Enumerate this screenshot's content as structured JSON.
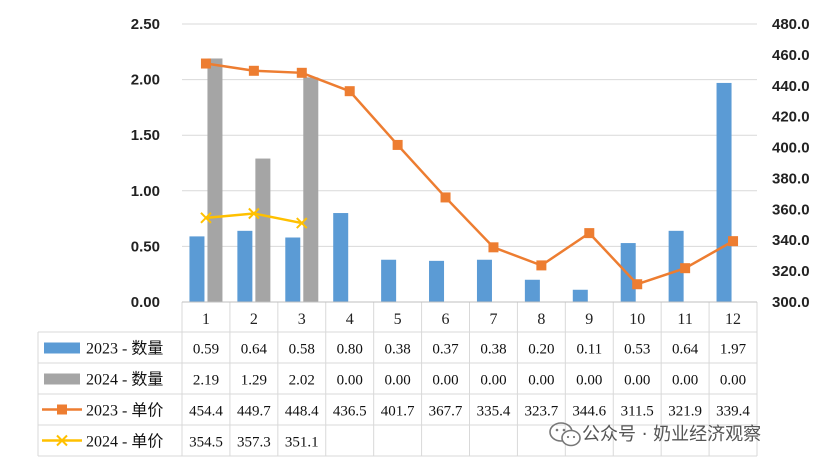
{
  "chart_data": {
    "type": "bar",
    "categories": [
      "1",
      "2",
      "3",
      "4",
      "5",
      "6",
      "7",
      "8",
      "9",
      "10",
      "11",
      "12"
    ],
    "left_axis": {
      "ylim": [
        0,
        2.5
      ],
      "ticks": [
        "0.00",
        "0.50",
        "1.00",
        "1.50",
        "2.00",
        "2.50"
      ],
      "tick_values": [
        0,
        0.5,
        1.0,
        1.5,
        2.0,
        2.5
      ]
    },
    "right_axis": {
      "ylim": [
        300,
        480
      ],
      "ticks": [
        "300.0",
        "320.0",
        "340.0",
        "360.0",
        "380.0",
        "400.0",
        "420.0",
        "440.0",
        "460.0",
        "480.0"
      ],
      "tick_values": [
        300,
        320,
        340,
        360,
        380,
        400,
        420,
        440,
        460,
        480
      ]
    },
    "series": [
      {
        "name": "2023 - 数量",
        "kind": "bar",
        "axis": "left",
        "color": "#5b9bd5",
        "values": [
          0.59,
          0.64,
          0.58,
          0.8,
          0.38,
          0.37,
          0.38,
          0.2,
          0.11,
          0.53,
          0.64,
          1.97
        ],
        "labels": [
          "0.59",
          "0.64",
          "0.58",
          "0.80",
          "0.38",
          "0.37",
          "0.38",
          "0.20",
          "0.11",
          "0.53",
          "0.64",
          "1.97"
        ]
      },
      {
        "name": "2024 - 数量",
        "kind": "bar",
        "axis": "left",
        "color": "#a5a5a5",
        "values": [
          2.19,
          1.29,
          2.02,
          0,
          0,
          0,
          0,
          0,
          0,
          0,
          0,
          0
        ],
        "labels": [
          "2.19",
          "1.29",
          "2.02",
          "0.00",
          "0.00",
          "0.00",
          "0.00",
          "0.00",
          "0.00",
          "0.00",
          "0.00",
          "0.00"
        ]
      },
      {
        "name": "2023 - 单价",
        "kind": "line",
        "axis": "right",
        "color": "#ed7d31",
        "marker": "square",
        "values": [
          454.4,
          449.7,
          448.4,
          436.5,
          401.7,
          367.7,
          335.4,
          323.7,
          344.6,
          311.5,
          321.9,
          339.4
        ],
        "labels": [
          "454.4",
          "449.7",
          "448.4",
          "436.5",
          "401.7",
          "367.7",
          "335.4",
          "323.7",
          "344.6",
          "311.5",
          "321.9",
          "339.4"
        ]
      },
      {
        "name": "2024 - 单价",
        "kind": "line",
        "axis": "right",
        "color": "#ffc000",
        "marker": "x",
        "values": [
          354.5,
          357.3,
          351.1,
          null,
          null,
          null,
          null,
          null,
          null,
          null,
          null,
          null
        ],
        "labels": [
          "354.5",
          "357.3",
          "351.1",
          "",
          "",
          "",
          "",
          "",
          "",
          "",
          "",
          ""
        ]
      }
    ]
  },
  "watermark": {
    "icon": "wechat-icon",
    "text": "公众号 · 奶业经济观察"
  }
}
